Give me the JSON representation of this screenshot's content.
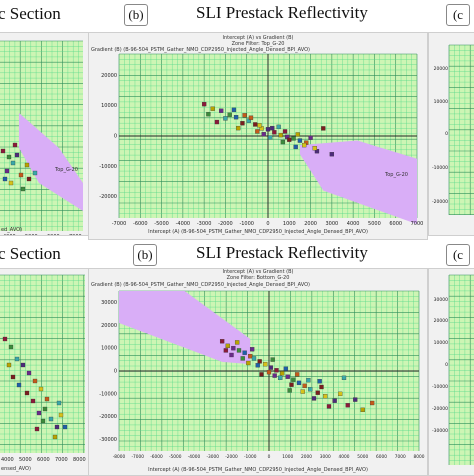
{
  "header_top": {
    "left_title": "c Section",
    "badge_b": "(b)",
    "center_title": "SLI Prestack Reflectivity",
    "badge_c": "(c"
  },
  "header_bottom": {
    "left_title": "c Section",
    "badge_b": "(b)",
    "center_title": "SLI Prestack Reflectivity",
    "badge_c": "(c"
  },
  "colors": {
    "plot_bg": "#cdf5b4",
    "grid_minor": "#56d98a",
    "grid_major": "#2f8f5a",
    "polygon": "#d9aef7",
    "window_bg": "#f1f1f1"
  },
  "plots": {
    "top_center": {
      "title": "Intercept (A) vs Gradient (B)",
      "subtitle": "Zone Filter: Top_G-20",
      "ylabel": "Gradient (B) (B-96-504_PSTM_Gather_NMO_CDP2950_Injected_Angle_Densed_BPI_AVO)",
      "xlabel": "Intercept (A) (B-96-504_PSTM_Gather_NMO_CDP2950_Injected_Angle_Densed_BPI_AVO)",
      "annotation": "Top_G-20",
      "x_ticks": [
        "-7000",
        "-6000",
        "-5000",
        "-4000",
        "-3000",
        "-2000",
        "-1000",
        "0",
        "1000",
        "2000",
        "3000",
        "4000",
        "5000",
        "6000",
        "7000"
      ],
      "y_ticks": [
        "20000",
        "10000",
        "0",
        "-10000",
        "-20000"
      ]
    },
    "bottom_center": {
      "title": "Intercept (A) vs Gradient (B)",
      "subtitle": "Zone Filter: Bottom_G-20",
      "ylabel": "Gradient (B) (B-96-504_PSTM_Gather_NMO_CDP2950_Injected_Angle_Densed_BPI_AVO)",
      "xlabel": "Intercept (A) (B-96-504_PSTM_Gather_NMO_CDP2950_Injected_Angle_Densed_BPI_AVO)",
      "x_ticks": [
        "-8000",
        "-7000",
        "-6000",
        "-5000",
        "-4000",
        "-3000",
        "-2000",
        "-1000",
        "0",
        "1000",
        "2000",
        "3000",
        "4000",
        "5000",
        "6000",
        "7000",
        "8000"
      ],
      "y_ticks": [
        "30000",
        "20000",
        "10000",
        "0",
        "-10000",
        "-20000",
        "-30000"
      ]
    },
    "top_left": {
      "annotation": "Top_G-20",
      "x_ticks": [
        "4000",
        "5000",
        "6000",
        "7000"
      ],
      "xlabel": "ed_AVO)"
    },
    "bottom_left": {
      "x_ticks": [
        "4000",
        "5000",
        "6000",
        "7000",
        "8000"
      ],
      "xlabel": "ensed_AVO)"
    },
    "top_right": {
      "y_ticks": [
        "20000",
        "10000",
        "0",
        "-10000",
        "-20000"
      ]
    },
    "bottom_right": {
      "y_ticks": [
        "30000",
        "20000",
        "10000",
        "0",
        "-10000",
        "-20000",
        "-30000"
      ]
    }
  },
  "chart_data": [
    {
      "type": "scatter",
      "panel": "top_center",
      "title": "Intercept (A) vs Gradient (B)",
      "xlabel": "Intercept (A) (B-96-504_PSTM_Gather_NMO_CDP2950_Injected_Angle_Densed_BPI_AVO)",
      "ylabel": "Gradient (B) (B-96-504_PSTM_Gather_NMO_CDP2950_Injected_Angle_Densed_BPI_AVO)",
      "xlim": [
        -7000,
        7000
      ],
      "ylim": [
        -27000,
        27000
      ],
      "grid": true,
      "polygon": [
        [
          1500,
          -3000
        ],
        [
          4200,
          -1500
        ],
        [
          7000,
          -7500
        ],
        [
          7000,
          -29000
        ],
        [
          2600,
          -18000
        ],
        [
          1500,
          -6000
        ]
      ],
      "points": [
        [
          -3000,
          10500
        ],
        [
          -2600,
          9000
        ],
        [
          -2200,
          8300
        ],
        [
          -1800,
          7000
        ],
        [
          -1500,
          6200
        ],
        [
          -1100,
          6800
        ],
        [
          -900,
          5000
        ],
        [
          -600,
          3800
        ],
        [
          -300,
          2500
        ],
        [
          0,
          2200
        ],
        [
          300,
          1200
        ],
        [
          600,
          300
        ],
        [
          900,
          -300
        ],
        [
          1200,
          -800
        ],
        [
          1500,
          -1500
        ],
        [
          1800,
          -2200
        ],
        [
          -2000,
          5800
        ],
        [
          -1200,
          4200
        ],
        [
          -400,
          3500
        ],
        [
          200,
          2600
        ],
        [
          800,
          1500
        ],
        [
          1400,
          500
        ],
        [
          2000,
          -600
        ],
        [
          -2800,
          7200
        ],
        [
          -1600,
          8600
        ],
        [
          -800,
          6000
        ],
        [
          500,
          3000
        ],
        [
          1000,
          -1200
        ],
        [
          1700,
          -3000
        ],
        [
          2300,
          -5000
        ],
        [
          -2400,
          4600
        ],
        [
          -1400,
          2600
        ],
        [
          -200,
          600
        ],
        [
          700,
          -2000
        ],
        [
          1300,
          -3600
        ],
        [
          -500,
          1500
        ],
        [
          100,
          -500
        ],
        [
          2600,
          2500
        ],
        [
          2200,
          -4000
        ],
        [
          3000,
          -6000
        ]
      ]
    },
    {
      "type": "scatter",
      "panel": "bottom_center",
      "title": "Intercept (A) vs Gradient (B)",
      "xlabel": "Intercept (A) (B-96-504_PSTM_Gather_NMO_CDP2950_Injected_Angle_Densed_BPI_AVO)",
      "ylabel": "Gradient (B) (B-96-504_PSTM_Gather_NMO_CDP2950_Injected_Angle_Densed_BPI_AVO)",
      "xlim": [
        -8000,
        8000
      ],
      "ylim": [
        -35000,
        35000
      ],
      "grid": true,
      "polygon": [
        [
          -8000,
          35000
        ],
        [
          -4500,
          35000
        ],
        [
          -1000,
          14000
        ],
        [
          -1000,
          3000
        ],
        [
          -2500,
          4000
        ],
        [
          -8000,
          21000
        ]
      ],
      "points": [
        [
          -2500,
          13000
        ],
        [
          -2200,
          11000
        ],
        [
          -1900,
          10000
        ],
        [
          -1600,
          9000
        ],
        [
          -1300,
          8000
        ],
        [
          -1000,
          6500
        ],
        [
          -800,
          5500
        ],
        [
          -500,
          4200
        ],
        [
          -200,
          3000
        ],
        [
          100,
          1500
        ],
        [
          400,
          300
        ],
        [
          700,
          -1000
        ],
        [
          1000,
          -2500
        ],
        [
          1300,
          -3800
        ],
        [
          1600,
          -5200
        ],
        [
          1900,
          -6500
        ],
        [
          2200,
          -8000
        ],
        [
          2600,
          -9500
        ],
        [
          3000,
          -11000
        ],
        [
          3500,
          -13000
        ],
        [
          4200,
          -15000
        ],
        [
          5000,
          -17000
        ],
        [
          -2000,
          7000
        ],
        [
          -1400,
          5500
        ],
        [
          -600,
          2500
        ],
        [
          0,
          -500
        ],
        [
          600,
          -3000
        ],
        [
          1200,
          -6000
        ],
        [
          1800,
          -9000
        ],
        [
          2400,
          -12000
        ],
        [
          3200,
          -15500
        ],
        [
          -1700,
          12500
        ],
        [
          -900,
          9500
        ],
        [
          200,
          5000
        ],
        [
          900,
          1000
        ],
        [
          1500,
          -1500
        ],
        [
          2100,
          -4000
        ],
        [
          2800,
          -7000
        ],
        [
          3800,
          -10000
        ],
        [
          4600,
          -12500
        ],
        [
          -2300,
          9000
        ],
        [
          -1100,
          3500
        ],
        [
          300,
          -2000
        ],
        [
          1100,
          -8500
        ],
        [
          2700,
          -4500
        ],
        [
          5500,
          -14000
        ],
        [
          4000,
          -3000
        ],
        [
          -400,
          -1500
        ]
      ]
    }
  ]
}
